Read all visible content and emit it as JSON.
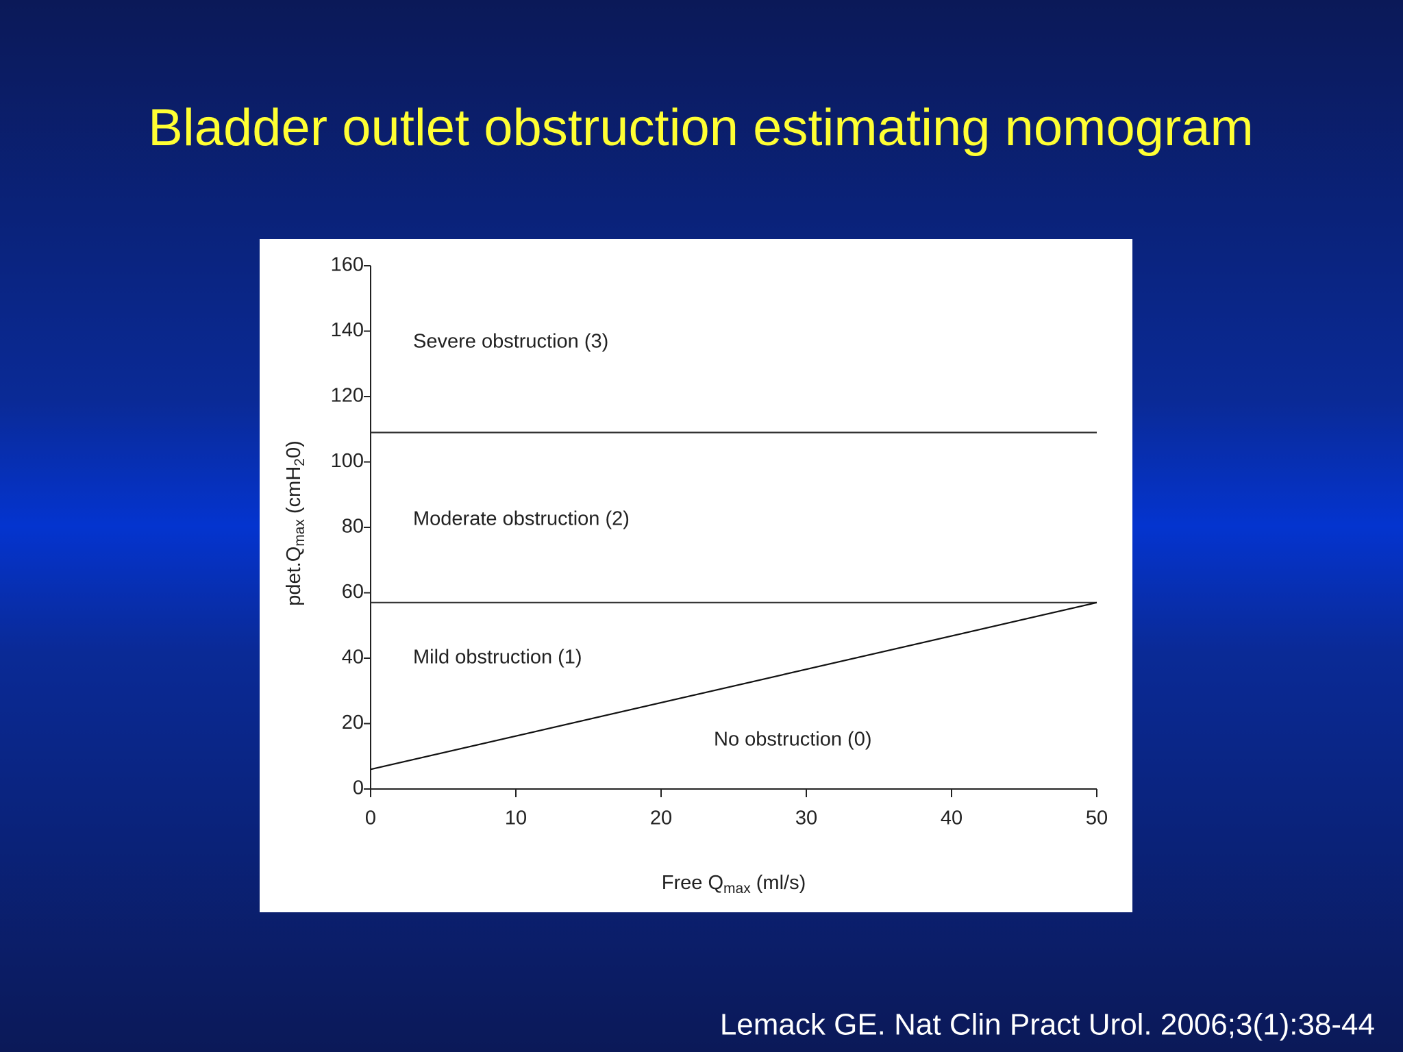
{
  "title": "Bladder outlet obstruction estimating nomogram",
  "source": "Lemack GE. Nat Clin Pract Urol. 2006;3(1):38-44",
  "chart_data": {
    "type": "line",
    "x_label": [
      "Free Q",
      "max",
      " (ml/s)"
    ],
    "y_label": [
      "pdet.Q",
      "max",
      " (cmH",
      "2",
      "0)"
    ],
    "annotations": [
      "Severe obstruction (3)",
      "Moderate obstruction (2)",
      "Mild obstruction (1)",
      "No obstruction (0)"
    ],
    "x": [
      0,
      50
    ],
    "series": [
      {
        "color": "#333333",
        "values": [
          109,
          109
        ]
      },
      {
        "color": "#333333",
        "values": [
          57,
          57
        ]
      },
      {
        "color": "#111111",
        "values": [
          6,
          57
        ]
      }
    ],
    "xlim": [
      0,
      50
    ],
    "xticks": [
      0,
      10,
      20,
      30,
      40,
      50
    ],
    "ylim": [
      0,
      160
    ],
    "yticks": [
      0,
      20,
      40,
      60,
      80,
      100,
      120,
      140,
      160
    ]
  }
}
